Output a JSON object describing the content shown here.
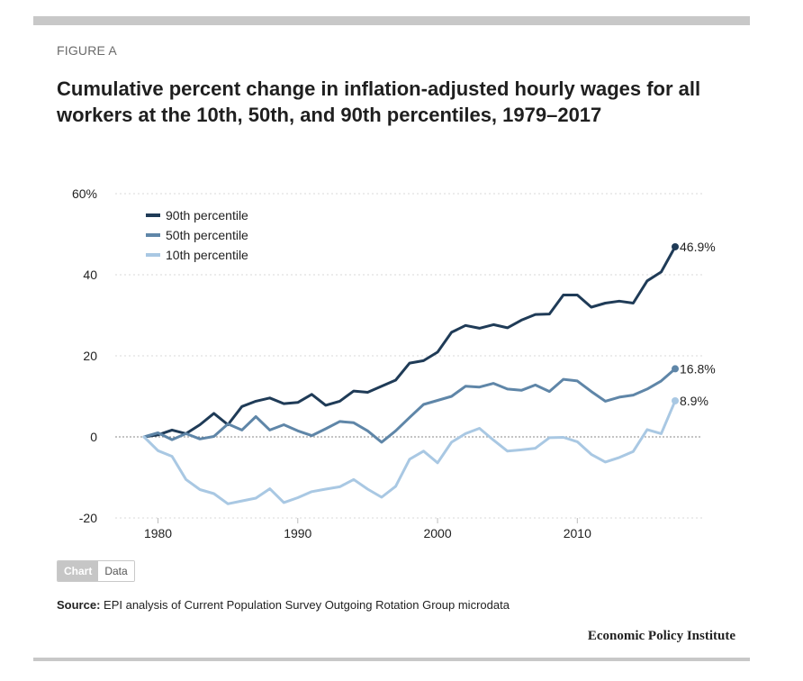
{
  "figure": {
    "label": "FIGURE A",
    "title": "Cumulative percent change in inflation-adjusted hourly wages for all workers at the 10th, 50th, and 90th percentiles, 1979–2017"
  },
  "tabs": {
    "chart": "Chart",
    "data": "Data"
  },
  "source": {
    "prefix": "Source:",
    "text": " EPI analysis of Current Population Survey Outgoing Rotation Group microdata"
  },
  "publisher": "Economic Policy Institute",
  "colors": {
    "p90": "#1f3b57",
    "p50": "#5f86a8",
    "p10": "#a9c8e3",
    "grid": "#d9d9d9",
    "zero": "#888888"
  },
  "chart_data": {
    "type": "line",
    "title": "Cumulative percent change in inflation-adjusted hourly wages for all workers at the 10th, 50th, and 90th percentiles, 1979–2017",
    "xlabel": "",
    "ylabel": "",
    "xlim": [
      1977,
      2020
    ],
    "ylim": [
      -20,
      60
    ],
    "xticks": [
      1980,
      1990,
      2000,
      2010
    ],
    "yticks": [
      -20,
      0,
      20,
      40,
      60
    ],
    "ytick_labels": [
      "-20",
      "0",
      "20",
      "40",
      "60%"
    ],
    "grid": true,
    "legend_position": "top-left",
    "x": [
      1979,
      1980,
      1981,
      1982,
      1983,
      1984,
      1985,
      1986,
      1987,
      1988,
      1989,
      1990,
      1991,
      1992,
      1993,
      1994,
      1995,
      1996,
      1997,
      1998,
      1999,
      2000,
      2001,
      2002,
      2003,
      2004,
      2005,
      2006,
      2007,
      2008,
      2009,
      2010,
      2011,
      2012,
      2013,
      2014,
      2015,
      2016,
      2017
    ],
    "series": [
      {
        "name": "90th percentile",
        "end_label": "46.9%",
        "color_key": "p90",
        "values": [
          0,
          0.5,
          1.7,
          0.8,
          3,
          5.8,
          3,
          7.5,
          8.8,
          9.6,
          8.2,
          8.5,
          10.5,
          7.8,
          8.8,
          11.3,
          11,
          12.5,
          14,
          18.2,
          18.8,
          20.9,
          25.8,
          27.5,
          26.8,
          27.7,
          26.9,
          28.8,
          30.2,
          30.3,
          35,
          35,
          32,
          33,
          33.5,
          33,
          38.5,
          40.7,
          46.9
        ]
      },
      {
        "name": "50th percentile",
        "end_label": "16.8%",
        "color_key": "p50",
        "values": [
          0,
          1,
          -0.7,
          0.8,
          -0.5,
          0.1,
          3.2,
          1.7,
          5,
          1.7,
          3,
          1.5,
          0.3,
          2,
          3.8,
          3.5,
          1.5,
          -1.3,
          1.5,
          4.8,
          8,
          9,
          10,
          12.5,
          12.3,
          13.2,
          11.8,
          11.5,
          12.8,
          11.2,
          14.2,
          13.8,
          11.2,
          8.8,
          9.8,
          10.3,
          11.8,
          13.8,
          16.8
        ]
      },
      {
        "name": "10th percentile",
        "end_label": "8.9%",
        "color_key": "p10",
        "values": [
          0,
          -3.4,
          -4.8,
          -10.5,
          -13,
          -14,
          -16.5,
          -15.8,
          -15.1,
          -12.8,
          -16.2,
          -15,
          -13.5,
          -12.9,
          -12.3,
          -10.5,
          -12.9,
          -14.9,
          -12.2,
          -5.5,
          -3.5,
          -6.4,
          -1.3,
          0.8,
          2.1,
          -0.8,
          -3.5,
          -3.2,
          -2.8,
          -0.2,
          -0.1,
          -1.2,
          -4.3,
          -6.2,
          -5.1,
          -3.6,
          1.8,
          0.8,
          8.9
        ]
      }
    ]
  }
}
